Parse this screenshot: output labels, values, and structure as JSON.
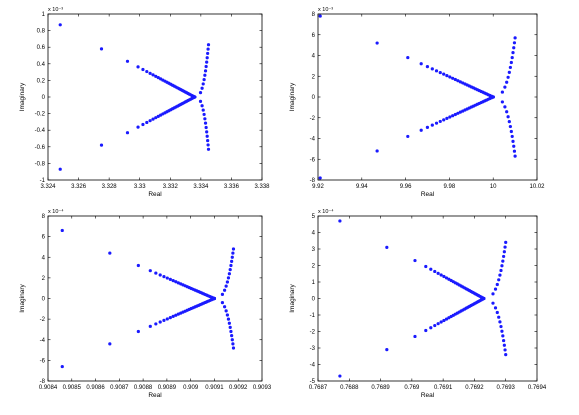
{
  "chart_data": [
    {
      "type": "scatter",
      "xlabel": "Real",
      "ylabel": "Imaginary",
      "xlim": [
        3.324,
        3.338
      ],
      "ylim": [
        -1,
        1
      ],
      "y_exponent": "x 10⁻³",
      "xticks": [
        "3.324",
        "3.326",
        "3.328",
        "3.33",
        "3.332",
        "3.334",
        "3.336",
        "3.338"
      ],
      "yticks": [
        "-1",
        "-0.8",
        "-0.6",
        "-0.4",
        "-0.2",
        "0",
        "0.2",
        "0.4",
        "0.6",
        "0.8",
        "1"
      ],
      "marker_color": "#1a1aff",
      "outer": [
        [
          3.3248,
          0.87
        ],
        [
          3.3248,
          -0.87
        ],
        [
          3.3275,
          0.58
        ],
        [
          3.3275,
          -0.58
        ]
      ],
      "arm_start": [
        3.3292,
        0.43
      ],
      "arm_end": [
        3.3336,
        0.0
      ],
      "arm_n": 30,
      "right_start": [
        3.3345,
        0.63
      ],
      "right_n": 13
    },
    {
      "type": "scatter",
      "xlabel": "Real",
      "ylabel": "Imaginary",
      "xlim": [
        9.92,
        10.02
      ],
      "ylim": [
        -8,
        8
      ],
      "y_exponent": "x 10⁻³",
      "xticks": [
        "9.92",
        "9.94",
        "9.96",
        "9.98",
        "10",
        "10.02"
      ],
      "yticks": [
        "-8",
        "-6",
        "-4",
        "-2",
        "0",
        "2",
        "4",
        "6",
        "8"
      ],
      "marker_color": "#1a1aff",
      "outer": [
        [
          9.921,
          7.8
        ],
        [
          9.921,
          -7.8
        ],
        [
          9.947,
          5.2
        ],
        [
          9.947,
          -5.2
        ]
      ],
      "arm_start": [
        9.961,
        3.8
      ],
      "arm_end": [
        10.0,
        0.0
      ],
      "arm_n": 30,
      "right_start": [
        10.01,
        5.7
      ],
      "right_n": 13
    },
    {
      "type": "scatter",
      "xlabel": "Real",
      "ylabel": "Imaginary",
      "xlim": [
        0.9084,
        0.9093
      ],
      "ylim": [
        -8,
        8
      ],
      "y_exponent": "x 10⁻⁴",
      "xticks": [
        "0.9084",
        "0.9085",
        "0.9086",
        "0.9087",
        "0.9088",
        "0.9089",
        "0.909",
        "0.9091",
        "0.9092",
        "0.9093"
      ],
      "yticks": [
        "-8",
        "-6",
        "-4",
        "-2",
        "0",
        "2",
        "4",
        "6",
        "8"
      ],
      "marker_color": "#1a1aff",
      "outer": [
        [
          0.90846,
          6.6
        ],
        [
          0.90846,
          -6.6
        ],
        [
          0.90866,
          4.4
        ],
        [
          0.90866,
          -4.4
        ]
      ],
      "arm_start": [
        0.90878,
        3.2
      ],
      "arm_end": [
        0.9091,
        0.0
      ],
      "arm_n": 30,
      "right_start": [
        0.90918,
        4.8
      ],
      "right_n": 13
    },
    {
      "type": "scatter",
      "xlabel": "Real",
      "ylabel": "Imaginary",
      "xlim": [
        0.7687,
        0.7694
      ],
      "ylim": [
        -5,
        5
      ],
      "y_exponent": "x 10⁻⁴",
      "xticks": [
        "0.7687",
        "0.7688",
        "0.7689",
        "0.769",
        "0.7691",
        "0.7692",
        "0.7693",
        "0.7694"
      ],
      "yticks": [
        "-5",
        "-4",
        "-3",
        "-2",
        "-1",
        "0",
        "1",
        "2",
        "3",
        "4",
        "5"
      ],
      "marker_color": "#1a1aff",
      "outer": [
        [
          0.76877,
          4.7
        ],
        [
          0.76877,
          -4.7
        ],
        [
          0.76892,
          3.1
        ],
        [
          0.76892,
          -3.1
        ]
      ],
      "arm_start": [
        0.76901,
        2.3
      ],
      "arm_end": [
        0.76923,
        0.0
      ],
      "arm_n": 30,
      "right_start": [
        0.7693,
        3.4
      ],
      "right_n": 13
    }
  ]
}
